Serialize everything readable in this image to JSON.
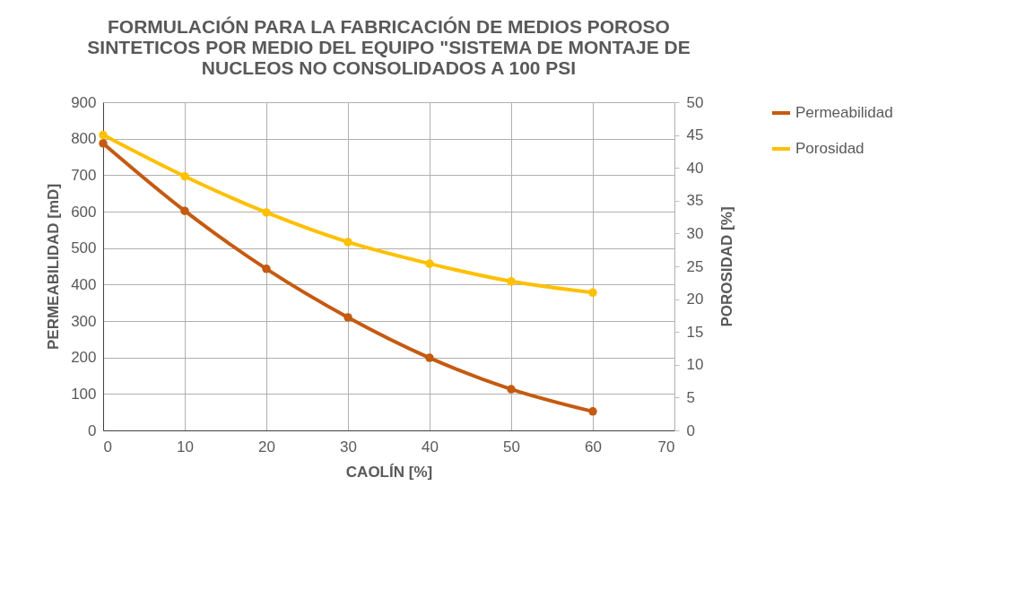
{
  "chart_data": {
    "type": "line",
    "title": "FORMULACIÓN PARA LA FABRICACIÓN DE MEDIOS POROSO\nSINTETICOS POR MEDIO DEL EQUIPO \"SISTEMA DE MONTAJE DE\nNUCLEOS NO CONSOLIDADOS A 100 PSI",
    "xlabel": "CAOLÍN [%]",
    "ylabel": "PERMEABILIDAD [mD]",
    "y2label": "POROSIDAD  [%]",
    "x": [
      0,
      10,
      20,
      30,
      40,
      50,
      60
    ],
    "series": [
      {
        "name": "Permeabilidad",
        "color": "#c55a11",
        "values": [
          787,
          602,
          443,
          310,
          199,
          113,
          52
        ]
      },
      {
        "name": "Porosidad",
        "color": "#ffc000",
        "axis": "y2",
        "values": [
          45,
          38.7,
          33.2,
          28.7,
          25.4,
          22.7,
          21.0
        ]
      }
    ],
    "xlim": [
      0,
      70
    ],
    "xticks": [
      0,
      10,
      20,
      30,
      40,
      50,
      60,
      70
    ],
    "ylim": [
      0,
      900
    ],
    "yticks": [
      0,
      100,
      200,
      300,
      400,
      500,
      600,
      700,
      800,
      900
    ],
    "y2lim": [
      0,
      50
    ],
    "y2ticks": [
      0,
      5,
      10,
      15,
      20,
      25,
      30,
      35,
      40,
      45,
      50
    ],
    "grid": true,
    "legend": "right",
    "marker": "circle",
    "line_style": "solid"
  }
}
